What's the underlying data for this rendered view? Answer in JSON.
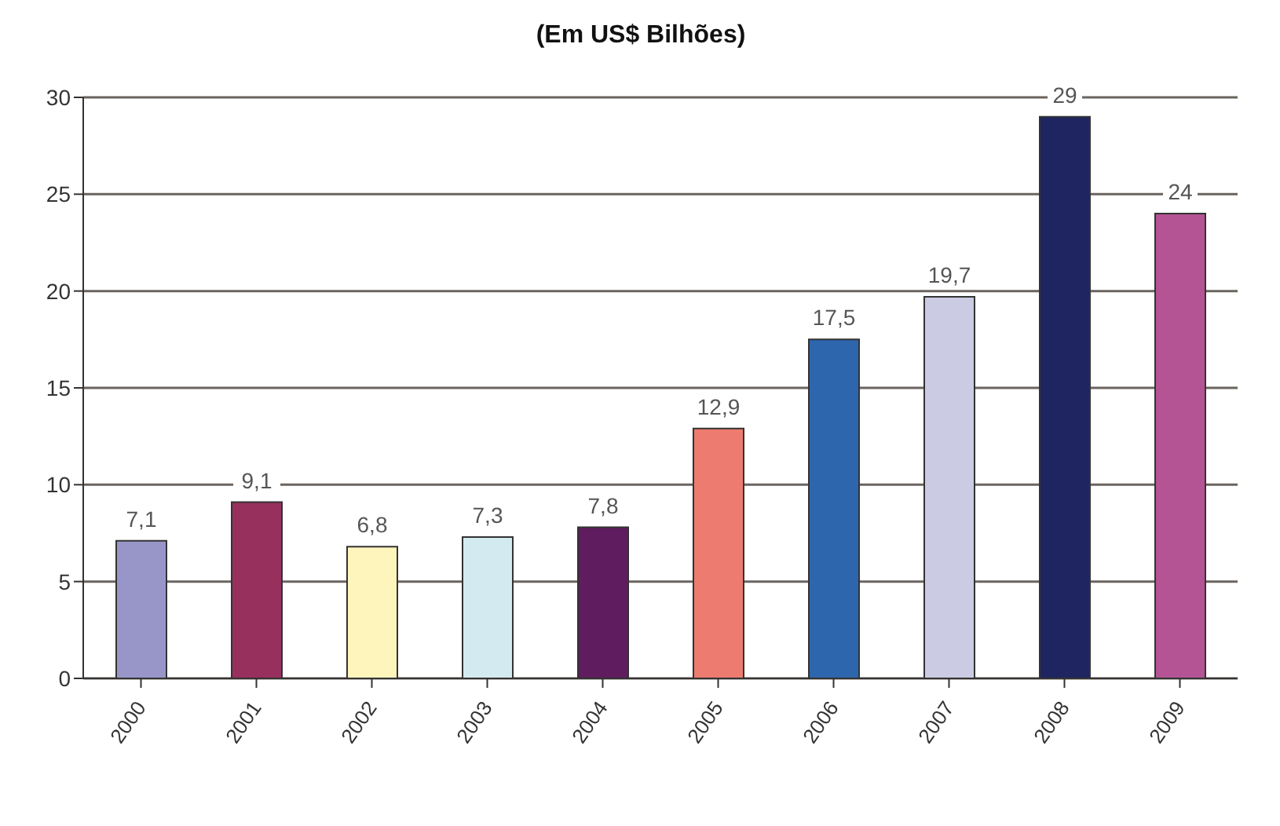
{
  "chart_data": {
    "type": "bar",
    "title": "(Em US$ Bilhões)",
    "categories": [
      "2000",
      "2001",
      "2002",
      "2003",
      "2004",
      "2005",
      "2006",
      "2007",
      "2008",
      "2009"
    ],
    "values": [
      7.1,
      9.1,
      6.8,
      7.3,
      7.8,
      12.9,
      17.5,
      19.7,
      29,
      24
    ],
    "value_labels": [
      "7,1",
      "9,1",
      "6,8",
      "7,3",
      "7,8",
      "12,9",
      "17,5",
      "19,7",
      "29",
      "24"
    ],
    "colors": [
      "#9896c8",
      "#98305e",
      "#fdf5bc",
      "#d3eaf0",
      "#5f1c5e",
      "#ee7b70",
      "#2e66ad",
      "#cbcbe3",
      "#1f2560",
      "#b45495"
    ],
    "ylim": [
      0,
      30
    ],
    "yticks": [
      0,
      5,
      10,
      15,
      20,
      25,
      30
    ],
    "grid": "y"
  }
}
